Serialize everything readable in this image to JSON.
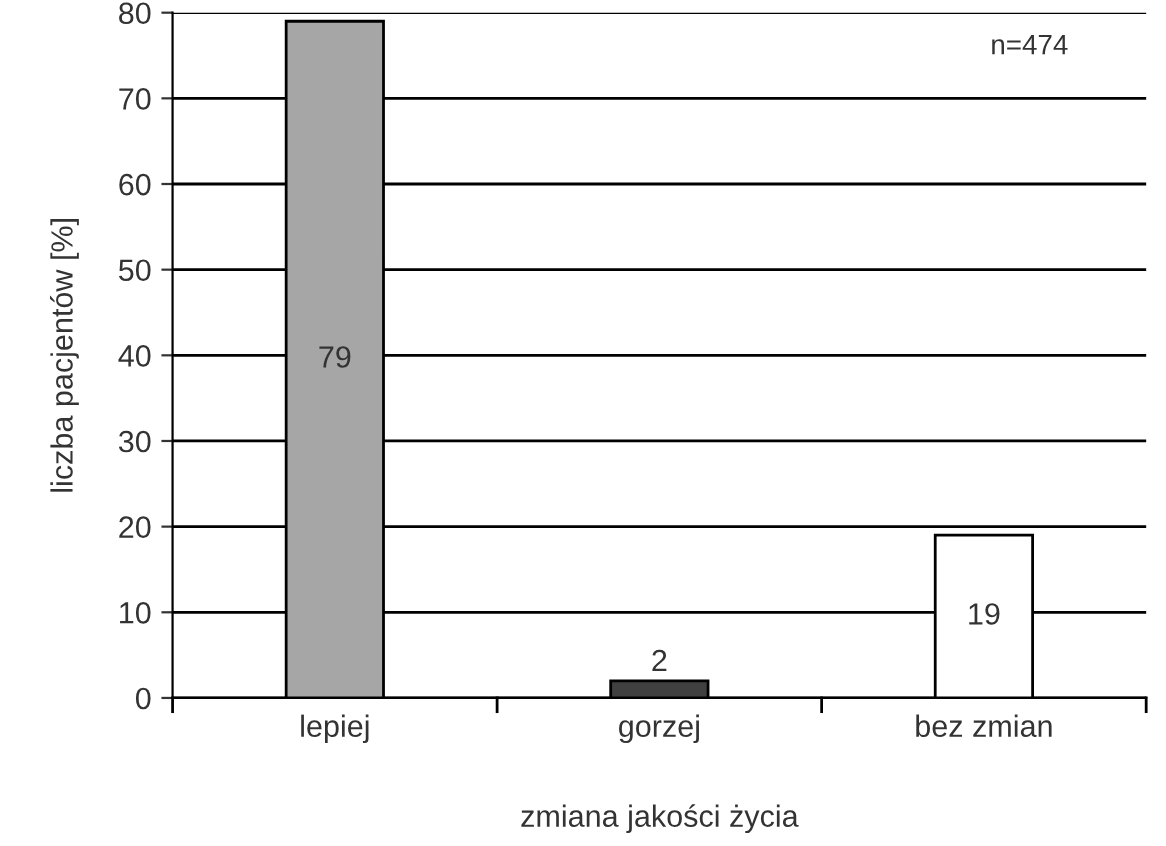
{
  "chart_data": {
    "type": "bar",
    "xlabel": "zmiana jakości życia",
    "ylabel": "liczba pacjentów [%]",
    "categories": [
      "lepiej",
      "gorzej",
      "bez zmian"
    ],
    "values": [
      79,
      2,
      19
    ],
    "colors": [
      "#a6a6a6",
      "#404040",
      "#ffffff"
    ],
    "ylim": [
      0,
      80
    ],
    "yticks": [
      0,
      10,
      20,
      30,
      40,
      50,
      60,
      70,
      80
    ],
    "grid": "y",
    "data_labels": true,
    "legend": false,
    "annotations": [
      "n=474"
    ]
  }
}
